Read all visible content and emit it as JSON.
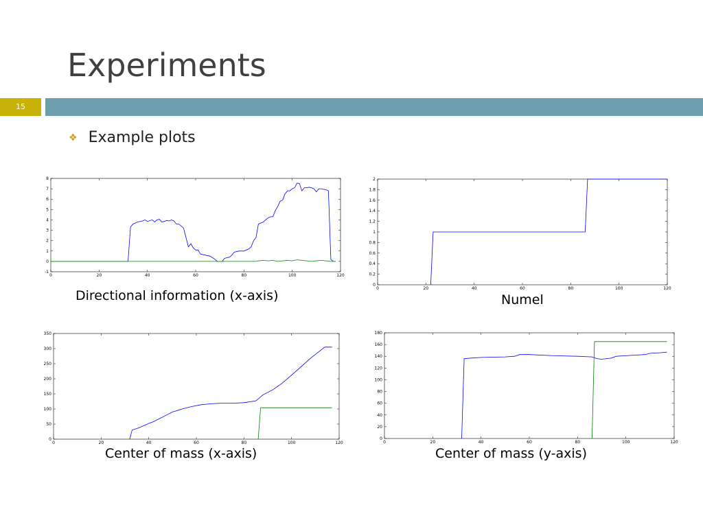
{
  "slide": {
    "title": "Experiments",
    "number": "15",
    "bullet_icon": "diamond-bullet-icon",
    "bullet": "Example plots",
    "colors": {
      "accent_bar": "#6c9eae",
      "number_box": "#c8b208",
      "title_text": "#404040"
    }
  },
  "captions": {
    "c1": "Directional information (x-axis)",
    "c2": "Numel",
    "c3": "Center of mass (x-axis)",
    "c4": "Center of mass (y-axis)"
  },
  "chart_data": [
    {
      "id": "c1",
      "type": "line",
      "xlim": [
        0,
        120
      ],
      "ylim": [
        -1,
        8
      ],
      "xticks": [
        0,
        20,
        40,
        60,
        80,
        100,
        120
      ],
      "yticks": [
        -1,
        0,
        1,
        2,
        3,
        4,
        5,
        6,
        7,
        8
      ],
      "series": [
        {
          "color": "#0000ff",
          "points": [
            [
              0,
              0
            ],
            [
              32,
              0
            ],
            [
              33,
              3.3
            ],
            [
              34,
              3.6
            ],
            [
              36,
              3.8
            ],
            [
              38,
              3.9
            ],
            [
              39,
              4
            ],
            [
              40,
              3.85
            ],
            [
              42,
              4
            ],
            [
              43,
              3.8
            ],
            [
              44,
              4
            ],
            [
              45,
              4.05
            ],
            [
              46,
              3.8
            ],
            [
              47,
              3.85
            ],
            [
              48,
              3.95
            ],
            [
              49,
              3.9
            ],
            [
              50,
              4
            ],
            [
              51,
              3.9
            ],
            [
              52,
              3.6
            ],
            [
              53,
              3.6
            ],
            [
              54,
              3.4
            ],
            [
              55,
              3.2
            ],
            [
              56,
              2.3
            ],
            [
              57,
              1.4
            ],
            [
              58,
              1.7
            ],
            [
              59,
              1.3
            ],
            [
              60,
              1.1
            ],
            [
              61,
              1.1
            ],
            [
              62,
              0.7
            ],
            [
              64,
              0.6
            ],
            [
              66,
              0.5
            ],
            [
              68,
              0.2
            ],
            [
              69,
              0
            ],
            [
              71,
              0
            ],
            [
              72,
              0.3
            ],
            [
              74,
              0.4
            ],
            [
              75,
              0.6
            ],
            [
              76,
              0.9
            ],
            [
              78,
              1
            ],
            [
              80,
              1
            ],
            [
              82,
              1.2
            ],
            [
              83,
              1.4
            ],
            [
              84,
              2
            ],
            [
              85,
              2.3
            ],
            [
              86,
              3.6
            ],
            [
              87,
              3.7
            ],
            [
              88,
              3.8
            ],
            [
              89,
              4
            ],
            [
              90,
              4.2
            ],
            [
              91,
              4.3
            ],
            [
              92,
              4.3
            ],
            [
              93,
              4.9
            ],
            [
              94,
              5.3
            ],
            [
              95,
              5.8
            ],
            [
              96,
              5.9
            ],
            [
              97,
              6.5
            ],
            [
              98,
              6.8
            ],
            [
              99,
              6.8
            ],
            [
              100,
              7
            ],
            [
              101,
              7.1
            ],
            [
              102,
              7.55
            ],
            [
              103,
              7.5
            ],
            [
              104,
              6.8
            ],
            [
              105,
              7.1
            ],
            [
              106,
              7.1
            ],
            [
              107,
              7.15
            ],
            [
              108,
              7.1
            ],
            [
              109,
              7
            ],
            [
              110,
              6.7
            ],
            [
              111,
              7
            ],
            [
              112,
              7
            ],
            [
              113,
              6.95
            ],
            [
              114,
              6.9
            ],
            [
              115,
              6.8
            ],
            [
              116,
              0.2
            ],
            [
              117,
              0
            ],
            [
              118,
              0
            ]
          ]
        },
        {
          "color": "#008000",
          "points": [
            [
              0,
              0
            ],
            [
              85,
              0
            ],
            [
              86,
              0.05
            ],
            [
              88,
              0.1
            ],
            [
              90,
              0.05
            ],
            [
              92,
              0.1
            ],
            [
              94,
              0
            ],
            [
              96,
              0.05
            ],
            [
              98,
              0.1
            ],
            [
              100,
              0.05
            ],
            [
              102,
              0.15
            ],
            [
              104,
              0.1
            ],
            [
              106,
              0.05
            ],
            [
              108,
              0
            ],
            [
              110,
              0.05
            ],
            [
              112,
              0.1
            ],
            [
              114,
              0.05
            ],
            [
              116,
              0
            ],
            [
              118,
              0
            ]
          ]
        }
      ]
    },
    {
      "id": "c2",
      "type": "line",
      "xlim": [
        0,
        120
      ],
      "ylim": [
        0,
        2
      ],
      "xticks": [
        0,
        20,
        40,
        60,
        80,
        100,
        120
      ],
      "yticks": [
        0,
        0.2,
        0.4,
        0.6,
        0.8,
        1,
        1.2,
        1.4,
        1.6,
        1.8,
        2
      ],
      "series": [
        {
          "color": "#0000ff",
          "points": [
            [
              22,
              0
            ],
            [
              23,
              1
            ],
            [
              86,
              1
            ],
            [
              87,
              2
            ],
            [
              120,
              2
            ]
          ]
        }
      ]
    },
    {
      "id": "c3",
      "type": "line",
      "xlim": [
        0,
        120
      ],
      "ylim": [
        0,
        350
      ],
      "xticks": [
        0,
        20,
        40,
        60,
        80,
        100,
        120
      ],
      "yticks": [
        0,
        50,
        100,
        150,
        200,
        250,
        300,
        350
      ],
      "series": [
        {
          "color": "#0000ff",
          "points": [
            [
              32,
              0
            ],
            [
              33,
              30
            ],
            [
              36,
              38
            ],
            [
              40,
              52
            ],
            [
              42,
              58
            ],
            [
              44,
              66
            ],
            [
              47,
              78
            ],
            [
              50,
              90
            ],
            [
              54,
              100
            ],
            [
              58,
              108
            ],
            [
              62,
              114
            ],
            [
              66,
              117
            ],
            [
              70,
              119
            ],
            [
              75,
              119
            ],
            [
              80,
              121
            ],
            [
              85,
              127
            ],
            [
              86,
              133
            ],
            [
              88,
              147
            ],
            [
              92,
              163
            ],
            [
              96,
              185
            ],
            [
              100,
              212
            ],
            [
              104,
              240
            ],
            [
              108,
              268
            ],
            [
              112,
              293
            ],
            [
              114,
              305
            ],
            [
              117,
              305
            ]
          ]
        },
        {
          "color": "#008000",
          "points": [
            [
              86,
              0
            ],
            [
              87,
              104
            ],
            [
              117,
              104
            ]
          ]
        }
      ]
    },
    {
      "id": "c4",
      "type": "line",
      "xlim": [
        0,
        120
      ],
      "ylim": [
        0,
        180
      ],
      "xticks": [
        0,
        20,
        40,
        60,
        80,
        100,
        120
      ],
      "yticks": [
        0,
        20,
        40,
        60,
        80,
        100,
        120,
        140,
        160,
        180
      ],
      "series": [
        {
          "color": "#0000ff",
          "points": [
            [
              32,
              0
            ],
            [
              33,
              136
            ],
            [
              36,
              137
            ],
            [
              40,
              138
            ],
            [
              50,
              139
            ],
            [
              54,
              140
            ],
            [
              56,
              143
            ],
            [
              60,
              143
            ],
            [
              70,
              141
            ],
            [
              80,
              140
            ],
            [
              86,
              139
            ],
            [
              88,
              136
            ],
            [
              90,
              135
            ],
            [
              94,
              137
            ],
            [
              96,
              140
            ],
            [
              100,
              141
            ],
            [
              104,
              142
            ],
            [
              108,
              143
            ],
            [
              110,
              145
            ],
            [
              114,
              146
            ],
            [
              117,
              147
            ]
          ]
        },
        {
          "color": "#008000",
          "points": [
            [
              86,
              0
            ],
            [
              87,
              165
            ],
            [
              117,
              165
            ]
          ]
        }
      ]
    }
  ]
}
